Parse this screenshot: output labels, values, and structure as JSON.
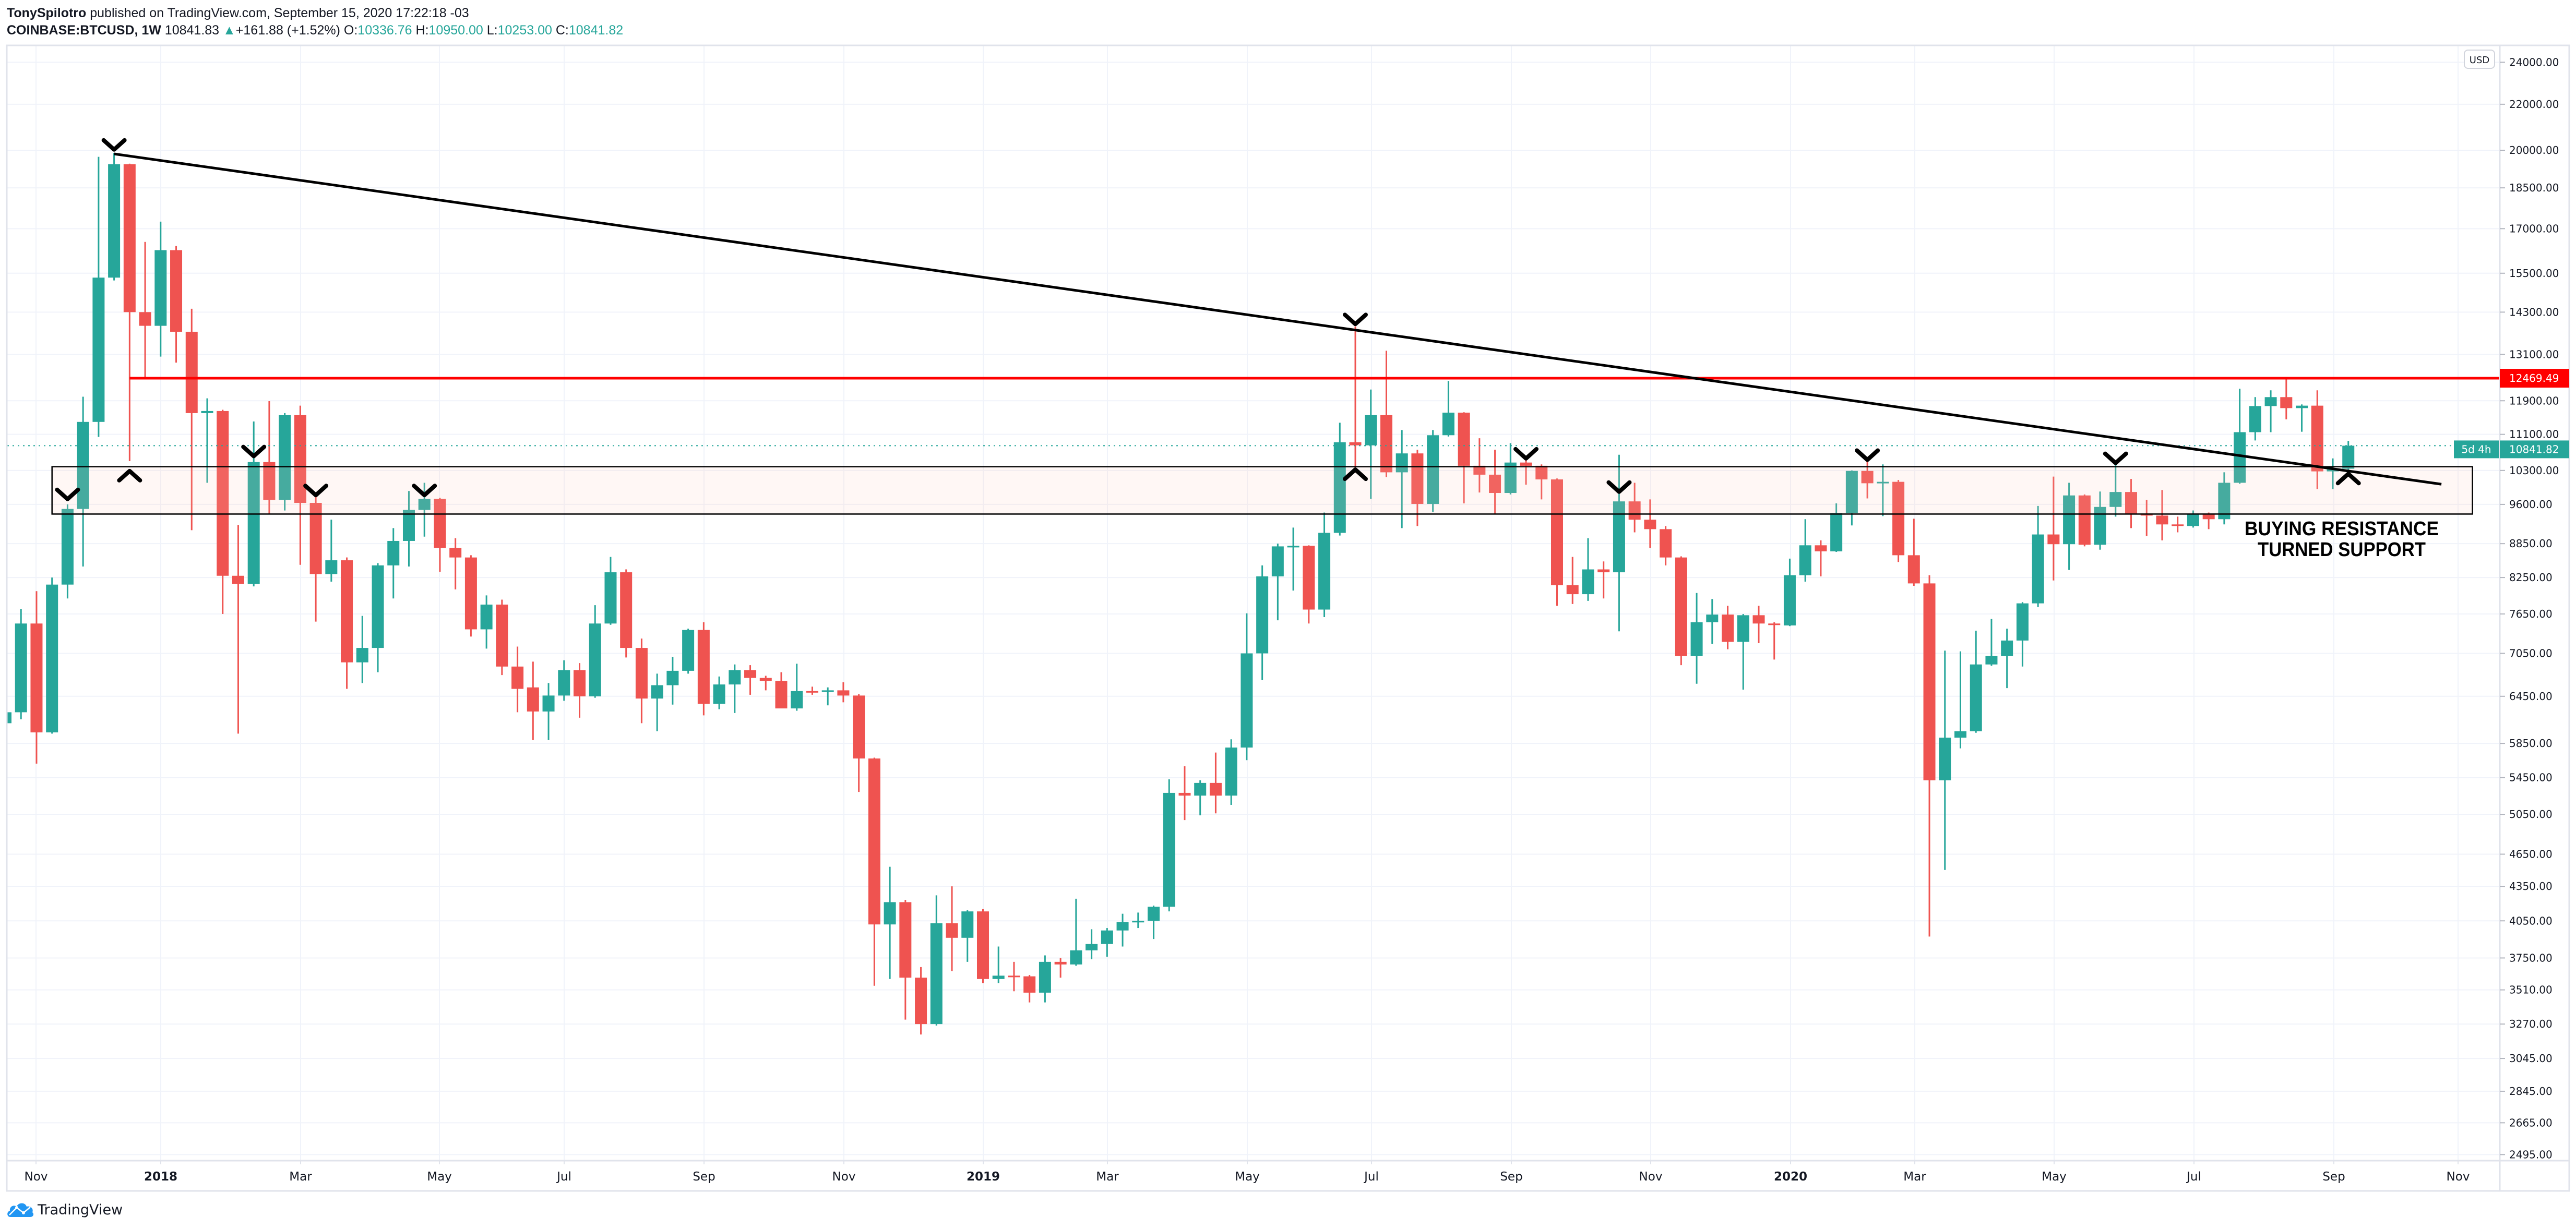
{
  "header": {
    "author": "TonySpilotro",
    "published": "published on TradingView.com, September 15, 2020 17:22:18 -03",
    "symbol": "COINBASE:BTCUSD, 1W",
    "last": "10841.83",
    "change": "+161.88 (+1.52%)",
    "o_label": "O:",
    "o": "10336.76",
    "h_label": "H:",
    "h": "10950.00",
    "l_label": "L:",
    "l": "10253.00",
    "c_label": "C:",
    "c": "10841.82",
    "up_icon": "triangle-up-icon"
  },
  "price_axis": {
    "currency": "USD",
    "last_price_tag": "10841.82",
    "countdown": "5d 4h",
    "level_tag": "12469.49"
  },
  "colors": {
    "up": "#26a69a",
    "down": "#ef5350",
    "level_line": "#ff0000",
    "trendline": "#000000",
    "grid": "#f0f3fa"
  },
  "annotation_text": {
    "line1": "BUYING RESISTANCE",
    "line2": "TURNED SUPPORT"
  },
  "logo": {
    "text": "TradingView"
  },
  "chart_data": {
    "type": "candlestick",
    "symbol": "COINBASE:BTCUSD",
    "interval": "1W",
    "y_scale": "log",
    "grid": true,
    "y_ticks": [
      24000,
      22000,
      20000,
      18500,
      17000,
      15500,
      14300,
      13100,
      11900,
      11100,
      10300,
      9600,
      8850,
      8250,
      7650,
      7050,
      6450,
      5850,
      5450,
      5050,
      4650,
      4350,
      4050,
      3750,
      3510,
      3270,
      3045,
      2845,
      2665,
      2495
    ],
    "x_tick_labels": [
      {
        "label": "Nov",
        "year": false
      },
      {
        "label": "2018",
        "year": true
      },
      {
        "label": "Mar",
        "year": false
      },
      {
        "label": "May",
        "year": false
      },
      {
        "label": "Jul",
        "year": false
      },
      {
        "label": "Sep",
        "year": false
      },
      {
        "label": "Nov",
        "year": false
      },
      {
        "label": "2019",
        "year": true
      },
      {
        "label": "Mar",
        "year": false
      },
      {
        "label": "May",
        "year": false
      },
      {
        "label": "Jul",
        "year": false
      },
      {
        "label": "Sep",
        "year": false
      },
      {
        "label": "Nov",
        "year": false
      },
      {
        "label": "2020",
        "year": true
      },
      {
        "label": "Mar",
        "year": false
      },
      {
        "label": "May",
        "year": false
      },
      {
        "label": "Jul",
        "year": false
      },
      {
        "label": "Sep",
        "year": false
      },
      {
        "label": "Nov",
        "year": false
      }
    ],
    "candle_fields": [
      "date",
      "open",
      "high",
      "low",
      "close"
    ],
    "candles": [
      [
        "2017-10-23",
        6100,
        6250,
        6050,
        6240
      ],
      [
        "2017-10-30",
        6240,
        7730,
        6150,
        7500
      ],
      [
        "2017-11-06",
        7500,
        8020,
        5610,
        5985
      ],
      [
        "2017-11-13",
        5985,
        8250,
        5970,
        8130
      ],
      [
        "2017-11-20",
        8130,
        9600,
        7900,
        9510
      ],
      [
        "2017-11-27",
        9510,
        12000,
        8440,
        11390
      ],
      [
        "2017-12-04",
        11390,
        19730,
        11040,
        15360
      ],
      [
        "2017-12-11",
        15360,
        19890,
        15270,
        19430
      ],
      [
        "2017-12-18",
        19430,
        19450,
        10500,
        14300
      ],
      [
        "2017-12-25",
        14300,
        16540,
        12450,
        13900
      ],
      [
        "2018-01-01",
        13900,
        17250,
        13040,
        16260
      ],
      [
        "2018-01-08",
        16260,
        16400,
        12880,
        13730
      ],
      [
        "2018-01-15",
        13730,
        14400,
        9100,
        11600
      ],
      [
        "2018-01-22",
        11600,
        11960,
        10040,
        11650
      ],
      [
        "2018-01-29",
        11650,
        11680,
        7650,
        8280
      ],
      [
        "2018-02-05",
        8280,
        9200,
        5970,
        8140
      ],
      [
        "2018-02-12",
        8140,
        11400,
        8100,
        10480
      ],
      [
        "2018-02-19",
        10480,
        11890,
        9420,
        9690
      ],
      [
        "2018-02-26",
        9690,
        11600,
        9480,
        11550
      ],
      [
        "2018-03-05",
        11550,
        11780,
        8470,
        9630
      ],
      [
        "2018-03-12",
        9630,
        9800,
        7530,
        8310
      ],
      [
        "2018-03-19",
        8310,
        9300,
        8180,
        8550
      ],
      [
        "2018-03-26",
        8550,
        8600,
        6550,
        6920
      ],
      [
        "2018-04-02",
        6920,
        7620,
        6630,
        7130
      ],
      [
        "2018-04-09",
        7130,
        8500,
        6780,
        8460
      ],
      [
        "2018-04-16",
        8460,
        9140,
        7900,
        8900
      ],
      [
        "2018-04-23",
        8900,
        9870,
        8440,
        9490
      ],
      [
        "2018-04-30",
        9490,
        10040,
        8980,
        9710
      ],
      [
        "2018-05-07",
        9710,
        9730,
        8350,
        8770
      ],
      [
        "2018-05-14",
        8770,
        8950,
        8050,
        8600
      ],
      [
        "2018-05-21",
        8600,
        8640,
        7300,
        7410
      ],
      [
        "2018-05-28",
        7410,
        7950,
        7120,
        7800
      ],
      [
        "2018-06-04",
        7800,
        7880,
        6740,
        6860
      ],
      [
        "2018-06-11",
        6860,
        7150,
        6240,
        6550
      ],
      [
        "2018-06-18",
        6570,
        6930,
        5890,
        6250
      ],
      [
        "2018-06-25",
        6250,
        6630,
        5890,
        6460
      ],
      [
        "2018-07-02",
        6460,
        6950,
        6390,
        6810
      ],
      [
        "2018-07-09",
        6810,
        6910,
        6170,
        6450
      ],
      [
        "2018-07-16",
        6450,
        7790,
        6430,
        7500
      ],
      [
        "2018-07-23",
        7500,
        8610,
        7480,
        8340
      ],
      [
        "2018-07-30",
        8340,
        8390,
        6990,
        7130
      ],
      [
        "2018-08-06",
        7130,
        7270,
        6100,
        6420
      ],
      [
        "2018-08-13",
        6420,
        6760,
        6000,
        6600
      ],
      [
        "2018-08-20",
        6600,
        7000,
        6340,
        6800
      ],
      [
        "2018-08-27",
        6800,
        7420,
        6760,
        7400
      ],
      [
        "2018-09-03",
        7400,
        7520,
        6200,
        6350
      ],
      [
        "2018-09-10",
        6350,
        6720,
        6280,
        6610
      ],
      [
        "2018-09-17",
        6610,
        6890,
        6230,
        6810
      ],
      [
        "2018-09-24",
        6810,
        6880,
        6470,
        6700
      ],
      [
        "2018-10-01",
        6700,
        6730,
        6530,
        6660
      ],
      [
        "2018-10-08",
        6660,
        6780,
        6350,
        6290
      ],
      [
        "2018-10-15",
        6290,
        6900,
        6260,
        6520
      ],
      [
        "2018-10-22",
        6520,
        6580,
        6470,
        6510
      ],
      [
        "2018-10-29",
        6510,
        6570,
        6330,
        6530
      ],
      [
        "2018-11-05",
        6530,
        6640,
        6370,
        6460
      ],
      [
        "2018-11-12",
        6460,
        6480,
        5290,
        5670
      ],
      [
        "2018-11-19",
        5670,
        5680,
        3540,
        4020
      ],
      [
        "2018-11-26",
        4020,
        4530,
        3590,
        4210
      ],
      [
        "2018-12-03",
        4210,
        4230,
        3300,
        3600
      ],
      [
        "2018-12-10",
        3600,
        3680,
        3200,
        3270
      ],
      [
        "2018-12-17",
        3270,
        4270,
        3260,
        4030
      ],
      [
        "2018-12-24",
        4030,
        4350,
        3650,
        3910
      ],
      [
        "2018-12-31",
        3910,
        4140,
        3720,
        4130
      ],
      [
        "2019-01-07",
        4130,
        4150,
        3560,
        3590
      ],
      [
        "2019-01-14",
        3590,
        3840,
        3560,
        3615
      ],
      [
        "2019-01-21",
        3615,
        3720,
        3500,
        3610
      ],
      [
        "2019-01-28",
        3610,
        3620,
        3420,
        3490
      ],
      [
        "2019-02-04",
        3490,
        3770,
        3420,
        3720
      ],
      [
        "2019-02-11",
        3720,
        3750,
        3600,
        3700
      ],
      [
        "2019-02-18",
        3700,
        4240,
        3690,
        3810
      ],
      [
        "2019-02-25",
        3810,
        3980,
        3740,
        3860
      ],
      [
        "2019-03-04",
        3860,
        3990,
        3760,
        3970
      ],
      [
        "2019-03-11",
        3970,
        4110,
        3840,
        4040
      ],
      [
        "2019-03-18",
        4040,
        4120,
        3990,
        4050
      ],
      [
        "2019-03-25",
        4050,
        4180,
        3900,
        4170
      ],
      [
        "2019-04-01",
        4170,
        5430,
        4130,
        5280
      ],
      [
        "2019-04-08",
        5280,
        5580,
        4990,
        5250
      ],
      [
        "2019-04-15",
        5250,
        5420,
        5040,
        5390
      ],
      [
        "2019-04-22",
        5390,
        5740,
        5060,
        5250
      ],
      [
        "2019-04-29",
        5250,
        5900,
        5150,
        5800
      ],
      [
        "2019-05-06",
        5800,
        7660,
        5650,
        7050
      ],
      [
        "2019-05-13",
        7050,
        8460,
        6670,
        8270
      ],
      [
        "2019-05-20",
        8270,
        8850,
        7550,
        8800
      ],
      [
        "2019-05-27",
        8800,
        9150,
        8030,
        8810
      ],
      [
        "2019-06-03",
        8810,
        8820,
        7500,
        7720
      ],
      [
        "2019-06-10",
        7720,
        9440,
        7600,
        9050
      ],
      [
        "2019-06-17",
        9050,
        11370,
        9000,
        10920
      ],
      [
        "2019-06-24",
        10920,
        13880,
        10250,
        10850
      ],
      [
        "2019-07-01",
        10850,
        12180,
        9710,
        11550
      ],
      [
        "2019-07-08",
        11550,
        13200,
        10160,
        10260
      ],
      [
        "2019-07-15",
        10260,
        11200,
        9140,
        10670
      ],
      [
        "2019-07-22",
        10670,
        10750,
        9180,
        9610
      ],
      [
        "2019-07-29",
        9610,
        11200,
        9450,
        11080
      ],
      [
        "2019-08-05",
        11080,
        12400,
        11050,
        11610
      ],
      [
        "2019-08-12",
        11610,
        11620,
        9620,
        10400
      ],
      [
        "2019-08-19",
        10400,
        11010,
        9840,
        10210
      ],
      [
        "2019-08-26",
        10210,
        10750,
        9420,
        9830
      ],
      [
        "2019-09-02",
        9830,
        10900,
        9800,
        10470
      ],
      [
        "2019-09-09",
        10470,
        10540,
        10000,
        10400
      ],
      [
        "2019-09-16",
        10400,
        10430,
        9700,
        10110
      ],
      [
        "2019-09-23",
        10110,
        10130,
        7780,
        8120
      ],
      [
        "2019-09-30",
        8120,
        8610,
        7810,
        7970
      ],
      [
        "2019-10-07",
        7970,
        8950,
        7860,
        8390
      ],
      [
        "2019-10-14",
        8390,
        8530,
        7900,
        8340
      ],
      [
        "2019-10-21",
        8340,
        10640,
        7380,
        9660
      ],
      [
        "2019-10-28",
        9660,
        10040,
        9060,
        9300
      ],
      [
        "2019-11-04",
        9300,
        9700,
        8770,
        9120
      ],
      [
        "2019-11-11",
        9120,
        9180,
        8460,
        8600
      ],
      [
        "2019-11-18",
        8600,
        8620,
        6880,
        7010
      ],
      [
        "2019-11-25",
        7010,
        7990,
        6620,
        7520
      ],
      [
        "2019-12-02",
        7520,
        7890,
        7190,
        7640
      ],
      [
        "2019-12-09",
        7640,
        7780,
        7110,
        7220
      ],
      [
        "2019-12-16",
        7220,
        7650,
        6540,
        7630
      ],
      [
        "2019-12-23",
        7630,
        7780,
        7200,
        7500
      ],
      [
        "2019-12-30",
        7500,
        7520,
        6960,
        7480
      ],
      [
        "2020-01-06",
        7470,
        8580,
        7460,
        8290
      ],
      [
        "2020-01-13",
        8290,
        9310,
        8180,
        8820
      ],
      [
        "2020-01-20",
        8820,
        8910,
        8270,
        8710
      ],
      [
        "2020-01-27",
        8710,
        9620,
        8700,
        9430
      ],
      [
        "2020-02-03",
        9430,
        10300,
        9190,
        10290
      ],
      [
        "2020-02-10",
        10290,
        10560,
        9720,
        10030
      ],
      [
        "2020-02-17",
        10030,
        10430,
        9370,
        10060
      ],
      [
        "2020-02-24",
        10060,
        10100,
        8520,
        8640
      ],
      [
        "2020-03-02",
        8640,
        9320,
        8110,
        8150
      ],
      [
        "2020-03-09",
        8150,
        8290,
        3920,
        5420
      ],
      [
        "2020-03-16",
        5420,
        7090,
        4500,
        5920
      ],
      [
        "2020-03-23",
        5920,
        7080,
        5790,
        6000
      ],
      [
        "2020-03-30",
        6000,
        7390,
        5980,
        6890
      ],
      [
        "2020-04-06",
        6890,
        7570,
        6870,
        7010
      ],
      [
        "2020-04-13",
        7010,
        7420,
        6560,
        7240
      ],
      [
        "2020-04-20",
        7240,
        7840,
        6860,
        7820
      ],
      [
        "2020-04-27",
        7820,
        9570,
        7760,
        9020
      ],
      [
        "2020-05-04",
        9020,
        10170,
        8200,
        8840
      ],
      [
        "2020-05-11",
        8840,
        10040,
        8380,
        9780
      ],
      [
        "2020-05-18",
        9780,
        9800,
        8800,
        8830
      ],
      [
        "2020-05-25",
        8830,
        9860,
        8740,
        9550
      ],
      [
        "2020-06-01",
        9550,
        10460,
        9360,
        9850
      ],
      [
        "2020-06-08",
        9850,
        10120,
        9140,
        9420
      ],
      [
        "2020-06-15",
        9420,
        9690,
        8990,
        9380
      ],
      [
        "2020-06-22",
        9380,
        9890,
        8910,
        9210
      ],
      [
        "2020-06-29",
        9210,
        9360,
        9060,
        9180
      ],
      [
        "2020-07-06",
        9180,
        9480,
        9150,
        9410
      ],
      [
        "2020-07-13",
        9410,
        9440,
        9120,
        9310
      ],
      [
        "2020-07-20",
        9310,
        10260,
        9210,
        10040
      ],
      [
        "2020-07-27",
        10040,
        12200,
        10020,
        11150
      ],
      [
        "2020-08-03",
        11150,
        11990,
        10960,
        11770
      ],
      [
        "2020-08-10",
        11770,
        12160,
        11150,
        11990
      ],
      [
        "2020-08-17",
        11990,
        12500,
        11450,
        11720
      ],
      [
        "2020-08-24",
        11720,
        11810,
        11160,
        11780
      ],
      [
        "2020-08-31",
        11780,
        12160,
        9910,
        10280
      ],
      [
        "2020-09-07",
        10280,
        10560,
        9910,
        10336.76
      ],
      [
        "2020-09-14",
        10336.76,
        10950,
        10253,
        10841.82
      ]
    ],
    "last_price": 10841.82,
    "annotations": {
      "trendline": {
        "from": [
          "2017-12-11",
          19850
        ],
        "to": [
          "2020-10-26",
          10010
        ]
      },
      "horizontal_level": {
        "from": "2017-12-18",
        "price": 12469.49
      },
      "zone": {
        "from": "2017-11-13",
        "to": "2020-11-09",
        "top": 10380,
        "bottom": 9410
      },
      "markers": [
        {
          "date": "2017-12-11",
          "price": 20200,
          "dir": "down"
        },
        {
          "date": "2017-12-18",
          "price": 10200,
          "dir": "up"
        },
        {
          "date": "2017-11-20",
          "price": 9790,
          "dir": "down"
        },
        {
          "date": "2018-02-12",
          "price": 10700,
          "dir": "down"
        },
        {
          "date": "2018-03-12",
          "price": 9870,
          "dir": "down"
        },
        {
          "date": "2018-04-30",
          "price": 9870,
          "dir": "down"
        },
        {
          "date": "2019-06-24",
          "price": 14070,
          "dir": "down"
        },
        {
          "date": "2019-06-24",
          "price": 10230,
          "dir": "up"
        },
        {
          "date": "2019-09-09",
          "price": 10650,
          "dir": "down"
        },
        {
          "date": "2019-10-21",
          "price": 9940,
          "dir": "down"
        },
        {
          "date": "2020-02-10",
          "price": 10620,
          "dir": "down"
        },
        {
          "date": "2020-06-01",
          "price": 10550,
          "dir": "down"
        },
        {
          "date": "2020-09-14",
          "price": 10140,
          "dir": "up"
        }
      ]
    }
  }
}
